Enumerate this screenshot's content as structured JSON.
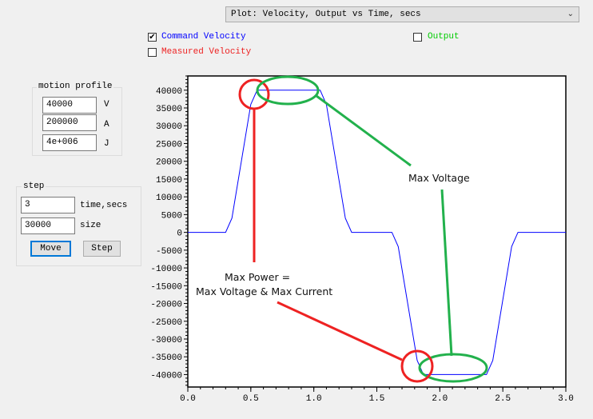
{
  "plot_select": {
    "value": "Plot: Velocity, Output vs Time, secs"
  },
  "checkboxes": [
    {
      "label": "Command Velocity",
      "checked": true,
      "color": "#0000ff"
    },
    {
      "label": "Measured Velocity",
      "checked": false,
      "color": "#ff0000"
    },
    {
      "label": "Output",
      "checked": false,
      "color": "#00cc00"
    }
  ],
  "motion_profile": {
    "title": "motion profile",
    "fields": [
      {
        "value": "40000",
        "unit": "V"
      },
      {
        "value": "200000",
        "unit": "A"
      },
      {
        "value": "4e+006",
        "unit": "J"
      }
    ]
  },
  "step": {
    "title": "step",
    "fields": [
      {
        "value": "3",
        "unit": "time,secs"
      },
      {
        "value": "30000",
        "unit": "size"
      }
    ],
    "move_label": "Move",
    "step_label": "Step"
  },
  "annotations": {
    "max_voltage": "Max Voltage",
    "max_power_1": "Max Power =",
    "max_power_2": "Max Voltage & Max Current"
  },
  "chart_data": {
    "type": "line",
    "xlim": [
      0,
      3.0
    ],
    "ylim": [
      -43500,
      44000
    ],
    "x_ticks": [
      "0.0",
      "0.5",
      "1.0",
      "1.5",
      "2.0",
      "2.5",
      "3.0"
    ],
    "y_ticks": [
      "40000",
      "35000",
      "30000",
      "25000",
      "20000",
      "15000",
      "10000",
      "5000",
      "0",
      "-5000",
      "-10000",
      "-15000",
      "-20000",
      "-25000",
      "-30000",
      "-35000",
      "-40000"
    ],
    "grid": false,
    "series": [
      {
        "name": "Command Velocity",
        "color": "#0000ff",
        "points": [
          [
            0,
            0
          ],
          [
            0.3,
            0
          ],
          [
            0.35,
            4000
          ],
          [
            0.5,
            36000
          ],
          [
            0.55,
            40000
          ],
          [
            1.05,
            40000
          ],
          [
            1.1,
            36000
          ],
          [
            1.25,
            4000
          ],
          [
            1.3,
            0
          ],
          [
            1.62,
            0
          ],
          [
            1.67,
            -4000
          ],
          [
            1.82,
            -36000
          ],
          [
            1.87,
            -40000
          ],
          [
            2.37,
            -40000
          ],
          [
            2.42,
            -36000
          ],
          [
            2.57,
            -4000
          ],
          [
            2.62,
            0
          ],
          [
            3.0,
            0
          ]
        ]
      }
    ]
  }
}
